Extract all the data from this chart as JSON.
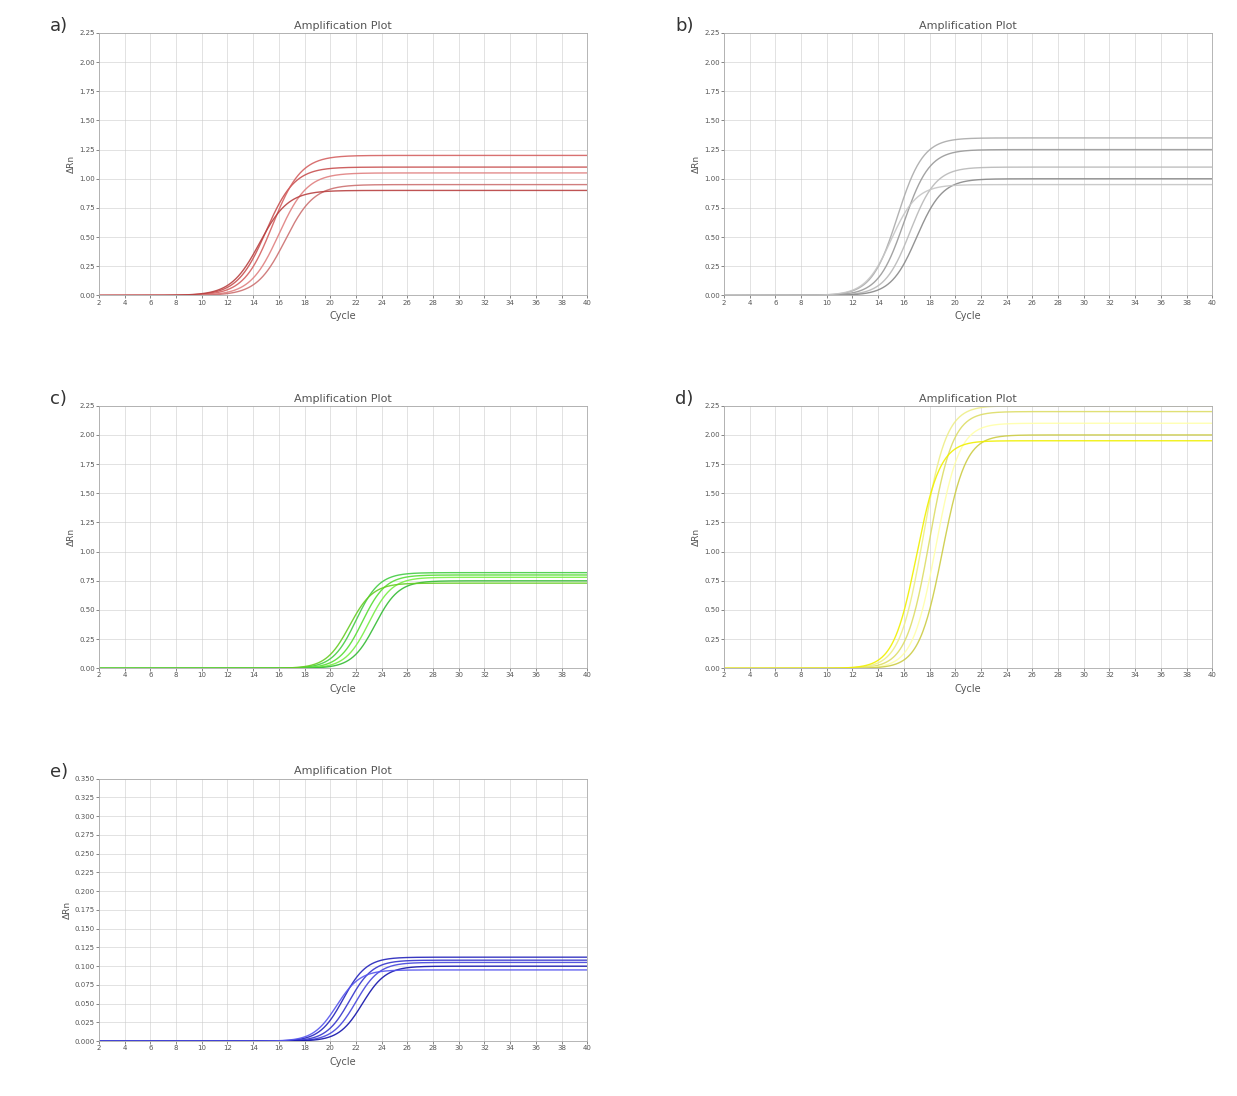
{
  "title": "Amplification Plot",
  "xlabel": "Cycle",
  "ylabel": "ΔRn",
  "panels": [
    {
      "label": "a)",
      "ylim": [
        0,
        2.25
      ],
      "yticks": [
        0.0,
        0.25,
        0.5,
        0.75,
        1.0,
        1.25,
        1.5,
        1.75,
        2.0,
        2.25
      ],
      "colors": [
        "#c85050",
        "#d46060",
        "#e08080",
        "#cc7070",
        "#b84040"
      ],
      "n_curves": 5,
      "midpoints": [
        15.0,
        15.5,
        16.0,
        16.5,
        14.5
      ],
      "plateaus": [
        1.1,
        1.2,
        1.05,
        0.95,
        0.9
      ],
      "steepness": [
        0.18,
        0.18,
        0.18,
        0.18,
        0.18
      ]
    },
    {
      "label": "b)",
      "ylim": [
        0,
        2.25
      ],
      "yticks": [
        0.0,
        0.25,
        0.5,
        0.75,
        1.0,
        1.25,
        1.5,
        1.75,
        2.0,
        2.25
      ],
      "colors": [
        "#aaaaaa",
        "#999999",
        "#b8b8b8",
        "#888888",
        "#c5c5c5"
      ],
      "n_curves": 5,
      "midpoints": [
        15.5,
        16.0,
        16.5,
        17.0,
        15.0
      ],
      "plateaus": [
        1.35,
        1.25,
        1.1,
        1.0,
        0.95
      ],
      "steepness": [
        0.2,
        0.2,
        0.2,
        0.2,
        0.2
      ]
    },
    {
      "label": "c)",
      "ylim": [
        0,
        2.25
      ],
      "yticks": [
        0.0,
        0.25,
        0.5,
        0.75,
        1.0,
        1.25,
        1.5,
        1.75,
        2.0,
        2.25
      ],
      "colors": [
        "#44cc44",
        "#55dd33",
        "#77ee44",
        "#33bb33",
        "#66cc22"
      ],
      "n_curves": 5,
      "midpoints": [
        22.0,
        22.5,
        23.0,
        23.5,
        21.5
      ],
      "plateaus": [
        0.82,
        0.8,
        0.78,
        0.75,
        0.73
      ],
      "steepness": [
        0.22,
        0.22,
        0.22,
        0.22,
        0.22
      ]
    },
    {
      "label": "d)",
      "ylim": [
        0,
        2.25
      ],
      "yticks": [
        0.0,
        0.25,
        0.5,
        0.75,
        1.0,
        1.25,
        1.5,
        1.75,
        2.0,
        2.25
      ],
      "colors": [
        "#eeee88",
        "#dddd66",
        "#ffffaa",
        "#cccc44",
        "#f0f000"
      ],
      "n_curves": 5,
      "midpoints": [
        17.5,
        18.0,
        18.5,
        19.0,
        17.0
      ],
      "plateaus": [
        2.25,
        2.2,
        2.1,
        2.0,
        1.95
      ],
      "steepness": [
        0.22,
        0.22,
        0.22,
        0.22,
        0.22
      ]
    },
    {
      "label": "e)",
      "ylim": [
        0,
        0.35
      ],
      "yticks": [
        0.0,
        0.025,
        0.05,
        0.075,
        0.1,
        0.125,
        0.15,
        0.175,
        0.2,
        0.225,
        0.25,
        0.275,
        0.3,
        0.325,
        0.35
      ],
      "colors": [
        "#2222bb",
        "#3333cc",
        "#4444dd",
        "#1111aa",
        "#5555ee"
      ],
      "n_curves": 5,
      "midpoints": [
        21.0,
        21.5,
        22.0,
        22.5,
        20.5
      ],
      "plateaus": [
        0.112,
        0.108,
        0.105,
        0.1,
        0.095
      ],
      "steepness": [
        0.22,
        0.22,
        0.22,
        0.22,
        0.22
      ]
    }
  ],
  "bg_color": "#ffffff",
  "grid_color": "#cccccc",
  "font_color": "#555555",
  "spine_color": "#aaaaaa",
  "xlim": [
    2,
    40
  ],
  "xticks": [
    2,
    4,
    6,
    8,
    10,
    12,
    14,
    16,
    18,
    20,
    22,
    24,
    26,
    28,
    30,
    32,
    34,
    36,
    38,
    40
  ]
}
